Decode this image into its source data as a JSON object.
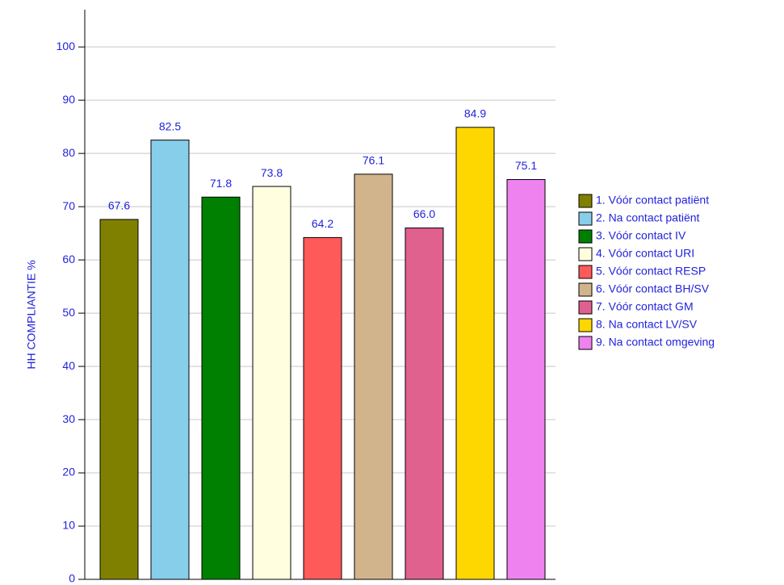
{
  "chart_data": {
    "type": "bar",
    "y_label": "HH COMPLIANTIE %",
    "categories": [
      "1. Vóór contact patiënt",
      "2. Na contact patiënt",
      "3. Vóór contact IV",
      "4. Vóór contact URI",
      "5. Vóór contact RESP",
      "6. Vóór contact BH/SV",
      "7. Vóór  contact GM",
      "8. Na contact LV/SV",
      "9. Na contact omgeving"
    ],
    "values": [
      67.6,
      82.5,
      71.8,
      73.8,
      64.2,
      76.1,
      66.0,
      84.9,
      75.1
    ],
    "value_labels": [
      "67.6",
      "82.5",
      "71.8",
      "73.8",
      "64.2",
      "76.1",
      "66.0",
      "84.9",
      "75.1"
    ],
    "colors": [
      "#808000",
      "#87ceeb",
      "#008000",
      "#ffffe0",
      "#ff5a5a",
      "#d2b48c",
      "#e0608e",
      "#ffd700",
      "#ee82ee"
    ],
    "ylim": [
      0,
      107
    ],
    "yticks": [
      0,
      10,
      20,
      30,
      40,
      50,
      60,
      70,
      80,
      90,
      100
    ],
    "grid": true,
    "legend": "right"
  }
}
